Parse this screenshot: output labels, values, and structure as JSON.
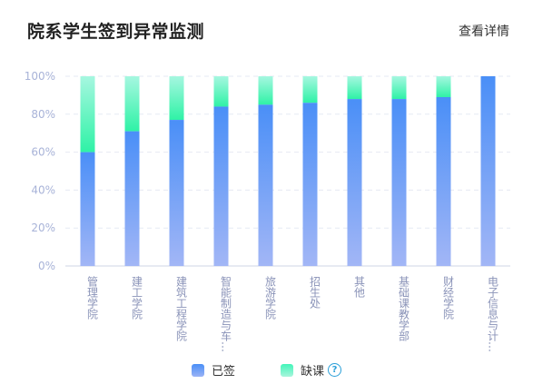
{
  "header": {
    "title": "院系学生签到异常监测",
    "details_link": "查看详情"
  },
  "legend": {
    "signed_label": "已签",
    "absent_label": "缺课",
    "help_icon": "?"
  },
  "colors": {
    "signed_top": "#4a8ff7",
    "signed_bottom": "#9ab3f6",
    "absent_top": "#9bf7df",
    "absent_bottom": "#31f2a8",
    "axis_text": "#a8b3d8",
    "grid": "#e6eaf3"
  },
  "chart_data": {
    "type": "bar",
    "stacked": true,
    "categories": [
      "管理学院",
      "建工学院",
      "建筑工程学院",
      "智能制造与车…",
      "旅游学院",
      "招生处",
      "其他",
      "基础课教学部",
      "财经学院",
      "电子信息与计…"
    ],
    "series": [
      {
        "name": "已签",
        "values": [
          60,
          71,
          77,
          84,
          85,
          86,
          88,
          88,
          89,
          100
        ]
      },
      {
        "name": "缺课",
        "values": [
          40,
          29,
          23,
          16,
          15,
          14,
          12,
          12,
          11,
          0
        ]
      }
    ],
    "ylim": [
      0,
      100
    ],
    "y_ticks": [
      "0%",
      "20%",
      "40%",
      "60%",
      "80%",
      "100%"
    ],
    "grid": true,
    "legend_position": "bottom-center"
  }
}
